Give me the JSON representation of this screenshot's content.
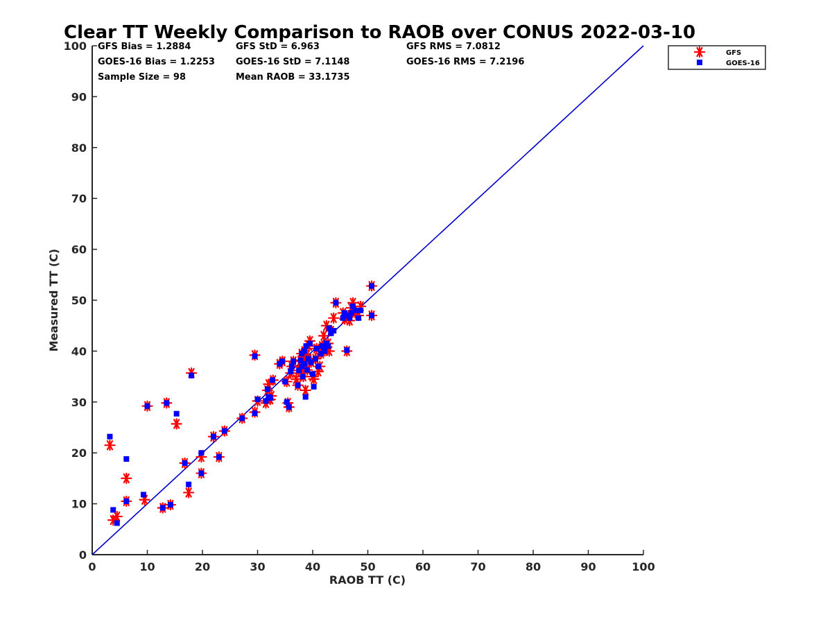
{
  "chart_data": {
    "type": "scatter",
    "title": "Clear TT Weekly Comparison to RAOB over CONUS 2022-03-10",
    "xlabel": "RAOB TT (C)",
    "ylabel": "Measured TT (C)",
    "xlim": [
      0,
      100
    ],
    "ylim": [
      0,
      100
    ],
    "xticks": [
      "0",
      "10",
      "20",
      "30",
      "40",
      "50",
      "60",
      "70",
      "80",
      "90",
      "100"
    ],
    "yticks": [
      "0",
      "10",
      "20",
      "30",
      "40",
      "50",
      "60",
      "70",
      "80",
      "90",
      "100"
    ],
    "grid": false,
    "legend_position": "top-right, outside plot",
    "stats": {
      "gfs_bias": "GFS Bias = 1.2884",
      "gfs_std": "GFS StD = 6.963",
      "gfs_rms": "GFS RMS = 7.0812",
      "goes_bias": "GOES-16 Bias = 1.2253",
      "goes_std": "GOES-16 StD = 7.1148",
      "goes_rms": "GOES-16 RMS = 7.2196",
      "sample_size": "Sample Size = 98",
      "mean_raob": "Mean RAOB = 33.1735"
    },
    "reference_line": {
      "name": "1:1 line",
      "x": [
        0,
        100
      ],
      "y": [
        0,
        100
      ],
      "color": "#0000cc"
    },
    "series": [
      {
        "name": "GFS",
        "marker": "asterisk",
        "color": "#ff0000",
        "points": [
          [
            3.2,
            21.5
          ],
          [
            3.8,
            6.8
          ],
          [
            4.5,
            7.5
          ],
          [
            6.2,
            15.0
          ],
          [
            6.2,
            10.5
          ],
          [
            9.5,
            10.8
          ],
          [
            10.0,
            29.2
          ],
          [
            12.8,
            9.2
          ],
          [
            13.5,
            29.8
          ],
          [
            14.2,
            9.8
          ],
          [
            15.3,
            25.7
          ],
          [
            16.8,
            18.0
          ],
          [
            17.5,
            12.2
          ],
          [
            18.0,
            35.7
          ],
          [
            19.8,
            16.0
          ],
          [
            19.8,
            19.2
          ],
          [
            22.0,
            23.2
          ],
          [
            23.0,
            19.2
          ],
          [
            24.0,
            24.3
          ],
          [
            27.2,
            26.8
          ],
          [
            29.5,
            28.0
          ],
          [
            29.5,
            39.2
          ],
          [
            30.0,
            30.2
          ],
          [
            31.5,
            29.8
          ],
          [
            31.8,
            32.3
          ],
          [
            32.0,
            33.5
          ],
          [
            32.3,
            30.5
          ],
          [
            32.5,
            31.2
          ],
          [
            32.8,
            34.3
          ],
          [
            34.0,
            37.5
          ],
          [
            34.5,
            38.0
          ],
          [
            35.3,
            34.0
          ],
          [
            35.5,
            29.8
          ],
          [
            35.7,
            29.0
          ],
          [
            36.0,
            35.7
          ],
          [
            36.2,
            37.0
          ],
          [
            36.5,
            38.0
          ],
          [
            37.0,
            34.5
          ],
          [
            37.3,
            33.3
          ],
          [
            37.5,
            36.2
          ],
          [
            37.8,
            38.2
          ],
          [
            38.0,
            39.5
          ],
          [
            38.0,
            37.0
          ],
          [
            38.2,
            36.0
          ],
          [
            38.3,
            35.0
          ],
          [
            38.5,
            40.0
          ],
          [
            38.5,
            37.5
          ],
          [
            38.7,
            32.3
          ],
          [
            38.8,
            39.0
          ],
          [
            39.0,
            36.3
          ],
          [
            39.2,
            38.5
          ],
          [
            39.3,
            41.0
          ],
          [
            39.5,
            42.0
          ],
          [
            39.7,
            37.8
          ],
          [
            40.0,
            35.0
          ],
          [
            40.2,
            34.5
          ],
          [
            40.5,
            38.5
          ],
          [
            40.7,
            40.5
          ],
          [
            41.0,
            36.0
          ],
          [
            41.3,
            37.0
          ],
          [
            41.5,
            39.5
          ],
          [
            41.7,
            41.0
          ],
          [
            42.0,
            43.0
          ],
          [
            42.2,
            40.0
          ],
          [
            42.5,
            45.0
          ],
          [
            42.8,
            41.5
          ],
          [
            43.0,
            40.0
          ],
          [
            43.3,
            44.0
          ],
          [
            43.8,
            46.5
          ],
          [
            44.2,
            49.5
          ],
          [
            45.5,
            47.5
          ],
          [
            45.8,
            46.3
          ],
          [
            46.2,
            40.0
          ],
          [
            46.5,
            47.0
          ],
          [
            46.7,
            46.0
          ],
          [
            47.0,
            48.5
          ],
          [
            47.3,
            49.5
          ],
          [
            47.7,
            47.5
          ],
          [
            48.3,
            47.0
          ],
          [
            48.7,
            48.8
          ],
          [
            50.7,
            52.8
          ],
          [
            50.7,
            47.0
          ]
        ]
      },
      {
        "name": "GOES-16",
        "marker": "square",
        "color": "#0000ff",
        "points": [
          [
            3.2,
            23.2
          ],
          [
            3.8,
            8.8
          ],
          [
            4.5,
            6.2
          ],
          [
            6.2,
            18.8
          ],
          [
            6.2,
            10.5
          ],
          [
            9.3,
            11.8
          ],
          [
            10.0,
            29.2
          ],
          [
            12.8,
            9.2
          ],
          [
            13.5,
            29.8
          ],
          [
            14.2,
            9.8
          ],
          [
            15.3,
            27.7
          ],
          [
            16.8,
            18.0
          ],
          [
            17.5,
            13.8
          ],
          [
            18.0,
            35.2
          ],
          [
            19.8,
            16.0
          ],
          [
            19.8,
            20.0
          ],
          [
            22.0,
            23.2
          ],
          [
            23.0,
            19.2
          ],
          [
            24.0,
            24.3
          ],
          [
            27.2,
            26.8
          ],
          [
            29.5,
            27.8
          ],
          [
            29.5,
            39.0
          ],
          [
            30.0,
            30.5
          ],
          [
            31.5,
            30.2
          ],
          [
            31.8,
            32.5
          ],
          [
            32.0,
            31.0
          ],
          [
            32.3,
            30.8
          ],
          [
            32.7,
            34.3
          ],
          [
            34.0,
            37.5
          ],
          [
            34.5,
            38.0
          ],
          [
            35.3,
            30.0
          ],
          [
            35.0,
            34.0
          ],
          [
            35.7,
            29.0
          ],
          [
            36.0,
            36.0
          ],
          [
            36.2,
            37.0
          ],
          [
            36.5,
            38.0
          ],
          [
            37.3,
            33.3
          ],
          [
            37.5,
            36.2
          ],
          [
            37.8,
            38.2
          ],
          [
            38.0,
            39.5
          ],
          [
            38.0,
            37.0
          ],
          [
            38.2,
            35.0
          ],
          [
            38.5,
            40.0
          ],
          [
            38.5,
            37.5
          ],
          [
            38.7,
            31.0
          ],
          [
            38.8,
            41.0
          ],
          [
            39.0,
            36.3
          ],
          [
            39.2,
            38.5
          ],
          [
            39.5,
            41.5
          ],
          [
            39.7,
            37.8
          ],
          [
            40.0,
            35.5
          ],
          [
            40.2,
            33.0
          ],
          [
            40.5,
            38.5
          ],
          [
            40.7,
            40.5
          ],
          [
            41.0,
            37.0
          ],
          [
            41.5,
            39.5
          ],
          [
            41.7,
            41.0
          ],
          [
            42.0,
            40.5
          ],
          [
            42.2,
            40.0
          ],
          [
            42.5,
            41.5
          ],
          [
            42.8,
            41.0
          ],
          [
            43.0,
            44.5
          ],
          [
            43.3,
            43.5
          ],
          [
            43.8,
            44.0
          ],
          [
            44.2,
            49.5
          ],
          [
            45.5,
            46.5
          ],
          [
            45.8,
            47.5
          ],
          [
            46.2,
            40.2
          ],
          [
            46.5,
            47.0
          ],
          [
            46.7,
            46.5
          ],
          [
            47.0,
            47.5
          ],
          [
            47.3,
            48.8
          ],
          [
            47.7,
            48.0
          ],
          [
            48.3,
            46.5
          ],
          [
            48.7,
            48.0
          ],
          [
            50.7,
            52.8
          ],
          [
            50.7,
            47.0
          ]
        ]
      }
    ]
  }
}
